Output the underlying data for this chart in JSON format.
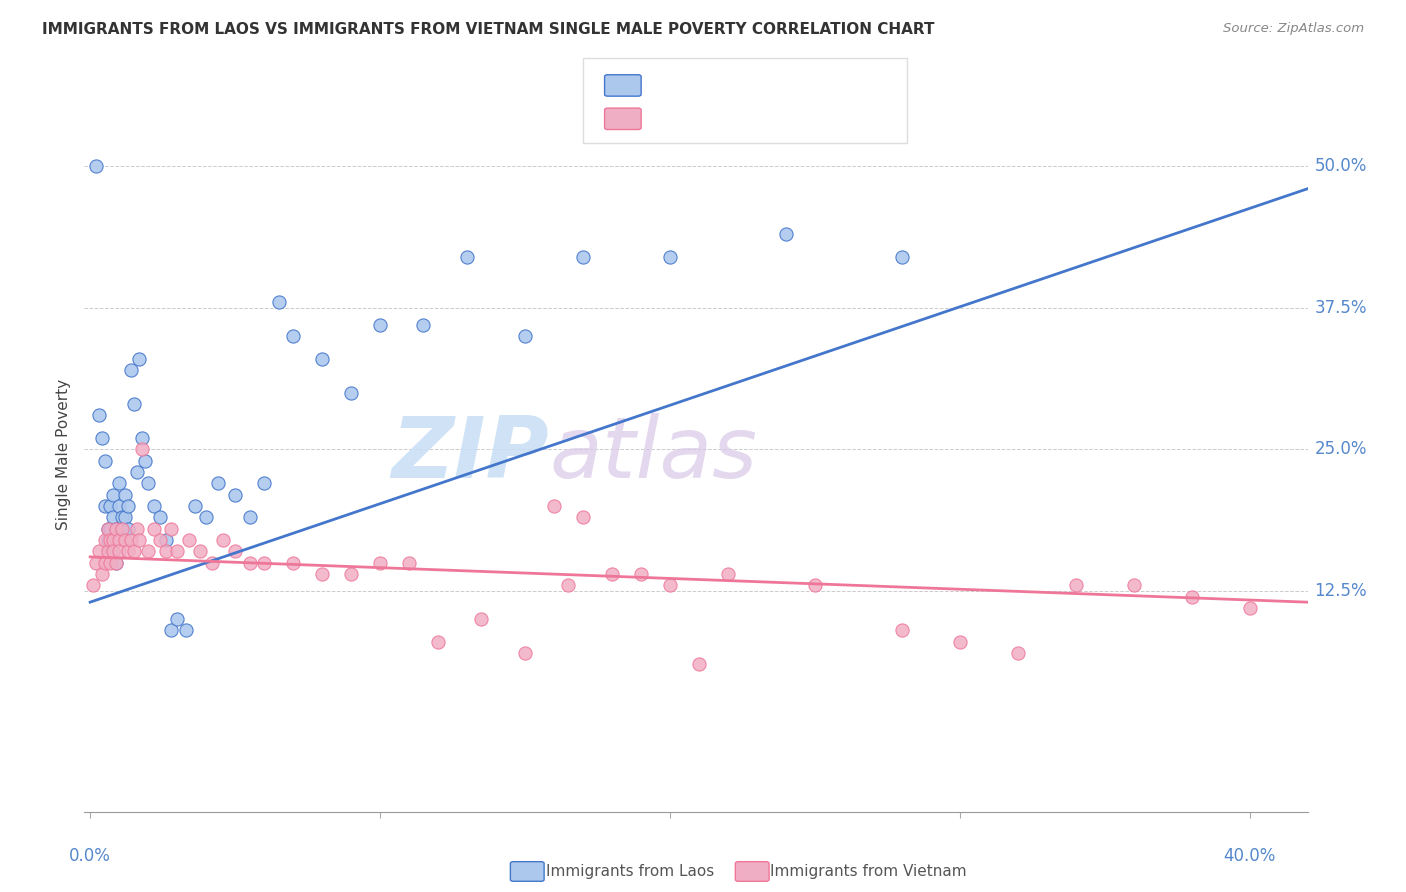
{
  "title": "IMMIGRANTS FROM LAOS VS IMMIGRANTS FROM VIETNAM SINGLE MALE POVERTY CORRELATION CHART",
  "source": "Source: ZipAtlas.com",
  "ylabel": "Single Male Poverty",
  "ytick_labels": [
    "12.5%",
    "25.0%",
    "37.5%",
    "50.0%"
  ],
  "ytick_values": [
    0.125,
    0.25,
    0.375,
    0.5
  ],
  "xlim": [
    -0.002,
    0.42
  ],
  "ylim": [
    -0.07,
    0.56
  ],
  "color_laos": "#adc8ed",
  "color_vietnam": "#f0aec4",
  "line_color_laos": "#4477cc",
  "line_color_vietnam": "#ee7799",
  "background_color": "#ffffff",
  "watermark_zip": "ZIP",
  "watermark_atlas": "atlas",
  "laos_x": [
    0.002,
    0.003,
    0.004,
    0.005,
    0.005,
    0.006,
    0.006,
    0.007,
    0.007,
    0.008,
    0.008,
    0.008,
    0.009,
    0.009,
    0.01,
    0.01,
    0.011,
    0.011,
    0.012,
    0.012,
    0.013,
    0.013,
    0.014,
    0.015,
    0.016,
    0.017,
    0.018,
    0.019,
    0.02,
    0.022,
    0.024,
    0.026,
    0.028,
    0.03,
    0.033,
    0.036,
    0.04,
    0.044,
    0.05,
    0.055,
    0.06,
    0.065,
    0.07,
    0.08,
    0.09,
    0.1,
    0.115,
    0.13,
    0.15,
    0.17,
    0.2,
    0.24,
    0.28
  ],
  "laos_y": [
    0.5,
    0.28,
    0.26,
    0.24,
    0.2,
    0.18,
    0.17,
    0.2,
    0.18,
    0.21,
    0.19,
    0.16,
    0.18,
    0.15,
    0.22,
    0.2,
    0.19,
    0.18,
    0.21,
    0.19,
    0.2,
    0.18,
    0.32,
    0.29,
    0.23,
    0.33,
    0.26,
    0.24,
    0.22,
    0.2,
    0.19,
    0.17,
    0.09,
    0.1,
    0.09,
    0.2,
    0.19,
    0.22,
    0.21,
    0.19,
    0.22,
    0.38,
    0.35,
    0.33,
    0.3,
    0.36,
    0.36,
    0.42,
    0.35,
    0.42,
    0.42,
    0.44,
    0.42
  ],
  "vietnam_x": [
    0.001,
    0.002,
    0.003,
    0.004,
    0.005,
    0.005,
    0.006,
    0.006,
    0.007,
    0.007,
    0.008,
    0.008,
    0.009,
    0.009,
    0.01,
    0.01,
    0.011,
    0.012,
    0.013,
    0.014,
    0.015,
    0.016,
    0.017,
    0.018,
    0.02,
    0.022,
    0.024,
    0.026,
    0.028,
    0.03,
    0.034,
    0.038,
    0.042,
    0.046,
    0.05,
    0.055,
    0.06,
    0.07,
    0.08,
    0.09,
    0.1,
    0.11,
    0.12,
    0.135,
    0.15,
    0.165,
    0.18,
    0.2,
    0.22,
    0.25,
    0.28,
    0.3,
    0.32,
    0.34,
    0.36,
    0.38,
    0.4,
    0.16,
    0.17,
    0.19,
    0.21
  ],
  "vietnam_y": [
    0.13,
    0.15,
    0.16,
    0.14,
    0.17,
    0.15,
    0.18,
    0.16,
    0.17,
    0.15,
    0.17,
    0.16,
    0.18,
    0.15,
    0.17,
    0.16,
    0.18,
    0.17,
    0.16,
    0.17,
    0.16,
    0.18,
    0.17,
    0.25,
    0.16,
    0.18,
    0.17,
    0.16,
    0.18,
    0.16,
    0.17,
    0.16,
    0.15,
    0.17,
    0.16,
    0.15,
    0.15,
    0.15,
    0.14,
    0.14,
    0.15,
    0.15,
    0.08,
    0.1,
    0.07,
    0.13,
    0.14,
    0.13,
    0.14,
    0.13,
    0.09,
    0.08,
    0.07,
    0.13,
    0.13,
    0.12,
    0.11,
    0.2,
    0.19,
    0.14,
    0.06
  ],
  "trend_laos_x0": 0.0,
  "trend_laos_x1": 0.42,
  "trend_laos_y0": 0.115,
  "trend_laos_y1": 0.48,
  "trend_viet_x0": 0.0,
  "trend_viet_x1": 0.42,
  "trend_viet_y0": 0.155,
  "trend_viet_y1": 0.115
}
